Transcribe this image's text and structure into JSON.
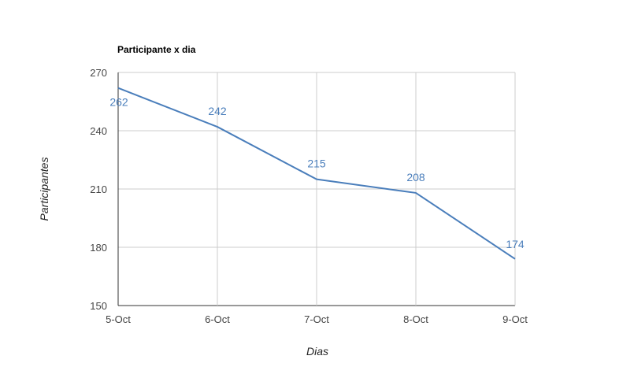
{
  "chart_data": {
    "type": "line",
    "title": "Participante x dia",
    "xlabel": "Dias",
    "ylabel": "Participantes",
    "categories": [
      "5-Oct",
      "6-Oct",
      "7-Oct",
      "8-Oct",
      "9-Oct"
    ],
    "series": [
      {
        "values": [
          262,
          242,
          215,
          208,
          174
        ],
        "color": "#4a7ebb"
      }
    ],
    "data_labels": [
      "262",
      "242",
      "215",
      "208",
      "174"
    ],
    "ylim": [
      150,
      270
    ],
    "yticks": [
      "150",
      "180",
      "210",
      "240",
      "270"
    ],
    "grid": true,
    "legend": "none"
  }
}
